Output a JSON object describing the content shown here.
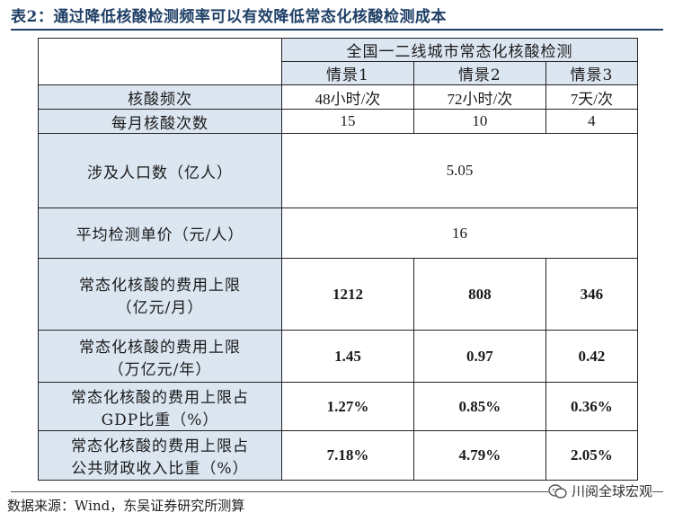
{
  "title": "表2：通过降低核酸检测频率可以有效降低常态化核酸检测成本",
  "table": {
    "group_header": "全国一二线城市常态化核酸检测",
    "scenarios": [
      "情景1",
      "情景2",
      "情景3"
    ],
    "rows": [
      {
        "label": "核酸频次",
        "values": [
          "48小时/次",
          "72小时/次",
          "7天/次"
        ]
      },
      {
        "label": "每月核酸次数",
        "values": [
          "15",
          "10",
          "4"
        ]
      },
      {
        "label": "涉及人口数（亿人）",
        "value": "5.05"
      },
      {
        "label": "平均检测单价（元/人）",
        "value": "16"
      },
      {
        "label_line1": "常态化核酸的费用上限",
        "label_line2": "（亿元/月）",
        "values": [
          "1212",
          "808",
          "346"
        ]
      },
      {
        "label_line1": "常态化核酸的费用上限",
        "label_line2": "（万亿元/年）",
        "values": [
          "1.45",
          "0.97",
          "0.42"
        ]
      },
      {
        "label_line1": "常态化核酸的费用上限占",
        "label_line2": "GDP比重（%）",
        "values": [
          "1.27%",
          "0.85%",
          "0.36%"
        ]
      },
      {
        "label_line1": "常态化核酸的费用上限占",
        "label_line2": "公共财政收入比重（%）",
        "values": [
          "7.18%",
          "4.79%",
          "2.05%"
        ]
      }
    ]
  },
  "source": "数据来源：Wind，东吴证券研究所测算",
  "watermark": "川阅全球宏观"
}
